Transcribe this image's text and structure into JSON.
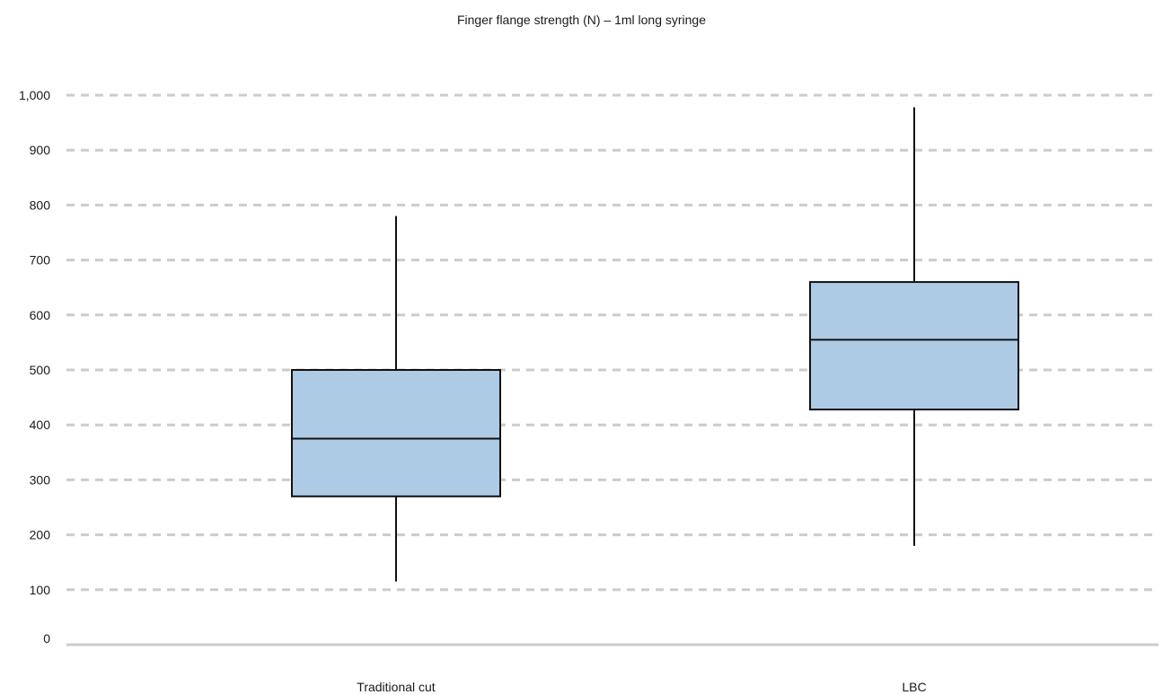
{
  "chart_data": {
    "type": "box",
    "title": "Finger flange strength (N) – 1ml long syringe",
    "xlabel": "",
    "ylabel": "",
    "ylim": [
      0,
      1000
    ],
    "yticks": [
      0,
      100,
      200,
      300,
      400,
      500,
      600,
      700,
      800,
      900,
      1000
    ],
    "ytick_labels": [
      "0",
      "100",
      "200",
      "300",
      "400",
      "500",
      "600",
      "700",
      "800",
      "900",
      "1,000"
    ],
    "grid": true,
    "categories": [
      "Traditional cut",
      "LBC"
    ],
    "boxes": [
      {
        "category": "Traditional cut",
        "min": 115,
        "q1": 270,
        "median": 375,
        "q3": 500,
        "max": 780
      },
      {
        "category": "LBC",
        "min": 180,
        "q1": 428,
        "median": 555,
        "q3": 660,
        "max": 978
      }
    ],
    "colors": {
      "box_fill": "#aecbe6",
      "box_stroke": "#111111",
      "grid": "#cccccc",
      "axis": "#cccccc"
    }
  }
}
